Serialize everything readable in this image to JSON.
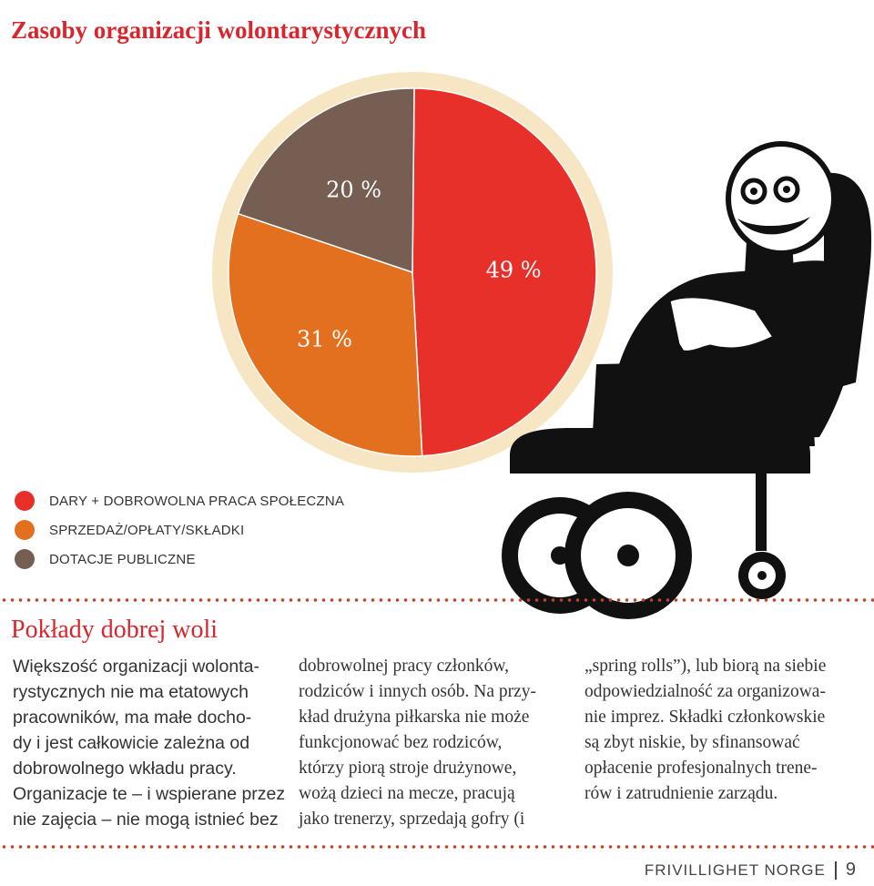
{
  "title": "Zasoby organizacji wolontarystycznych",
  "chart_data": {
    "type": "pie",
    "title": "Zasoby organizacji wolontarystycznych",
    "slices": [
      {
        "label": "DARY + DOBROWOLNA PRACA SPOŁECZNA",
        "value": 49,
        "display": "49 %",
        "color": "#e8302b"
      },
      {
        "label": "SPRZEDAŻ/OPŁATY/SKŁADKI",
        "value": 31,
        "display": "31 %",
        "color": "#e2701f"
      },
      {
        "label": "DOTACJE PUBLICZNE",
        "value": 20,
        "display": "20 %",
        "color": "#765f52"
      }
    ],
    "legend_position": "bottom-left",
    "ring_color": "#f7e6c4"
  },
  "legend": [
    {
      "label": "DARY + DOBROWOLNA PRACA SPOŁECZNA",
      "color": "#e8302b"
    },
    {
      "label": "SPRZEDAŻ/OPŁATY/SKŁADKI",
      "color": "#e2701f"
    },
    {
      "label": "DOTACJE PUBLICZNE",
      "color": "#765f52"
    }
  ],
  "article": {
    "title": "Pokłady dobrej woli",
    "col1": [
      "Większość organizacji wolonta-",
      "rystycznych nie ma etatowych",
      "pracowników, ma małe docho-",
      "dy i jest całkowicie zależna od",
      "dobrowolnego wkładu pracy.",
      "Organizacje te – i wspierane przez",
      "nie zajęcia – nie mogą istnieć bez"
    ],
    "col2": [
      "dobrowolnej pracy członków,",
      "rodziców i innych osób. Na przy-",
      "kład drużyna piłkarska nie może",
      "funkcjonować bez rodziców,",
      "którzy piorą stroje drużynowe,",
      "wożą dzieci na mecze, pracują",
      "jako trenerzy, sprzedają gofry (i"
    ],
    "col3": [
      "„spring rolls”), lub biorą na siebie",
      "odpowiedzialność za organizowa-",
      "nie imprez. Składki członkowskie",
      "są zbyt niskie, by sfinansować",
      "opłacenie profesjonalnych trene-",
      "rów i zatrudnienie zarządu."
    ]
  },
  "footer": {
    "brand": "FRIVILLIGHET NORGE",
    "page": "9"
  }
}
